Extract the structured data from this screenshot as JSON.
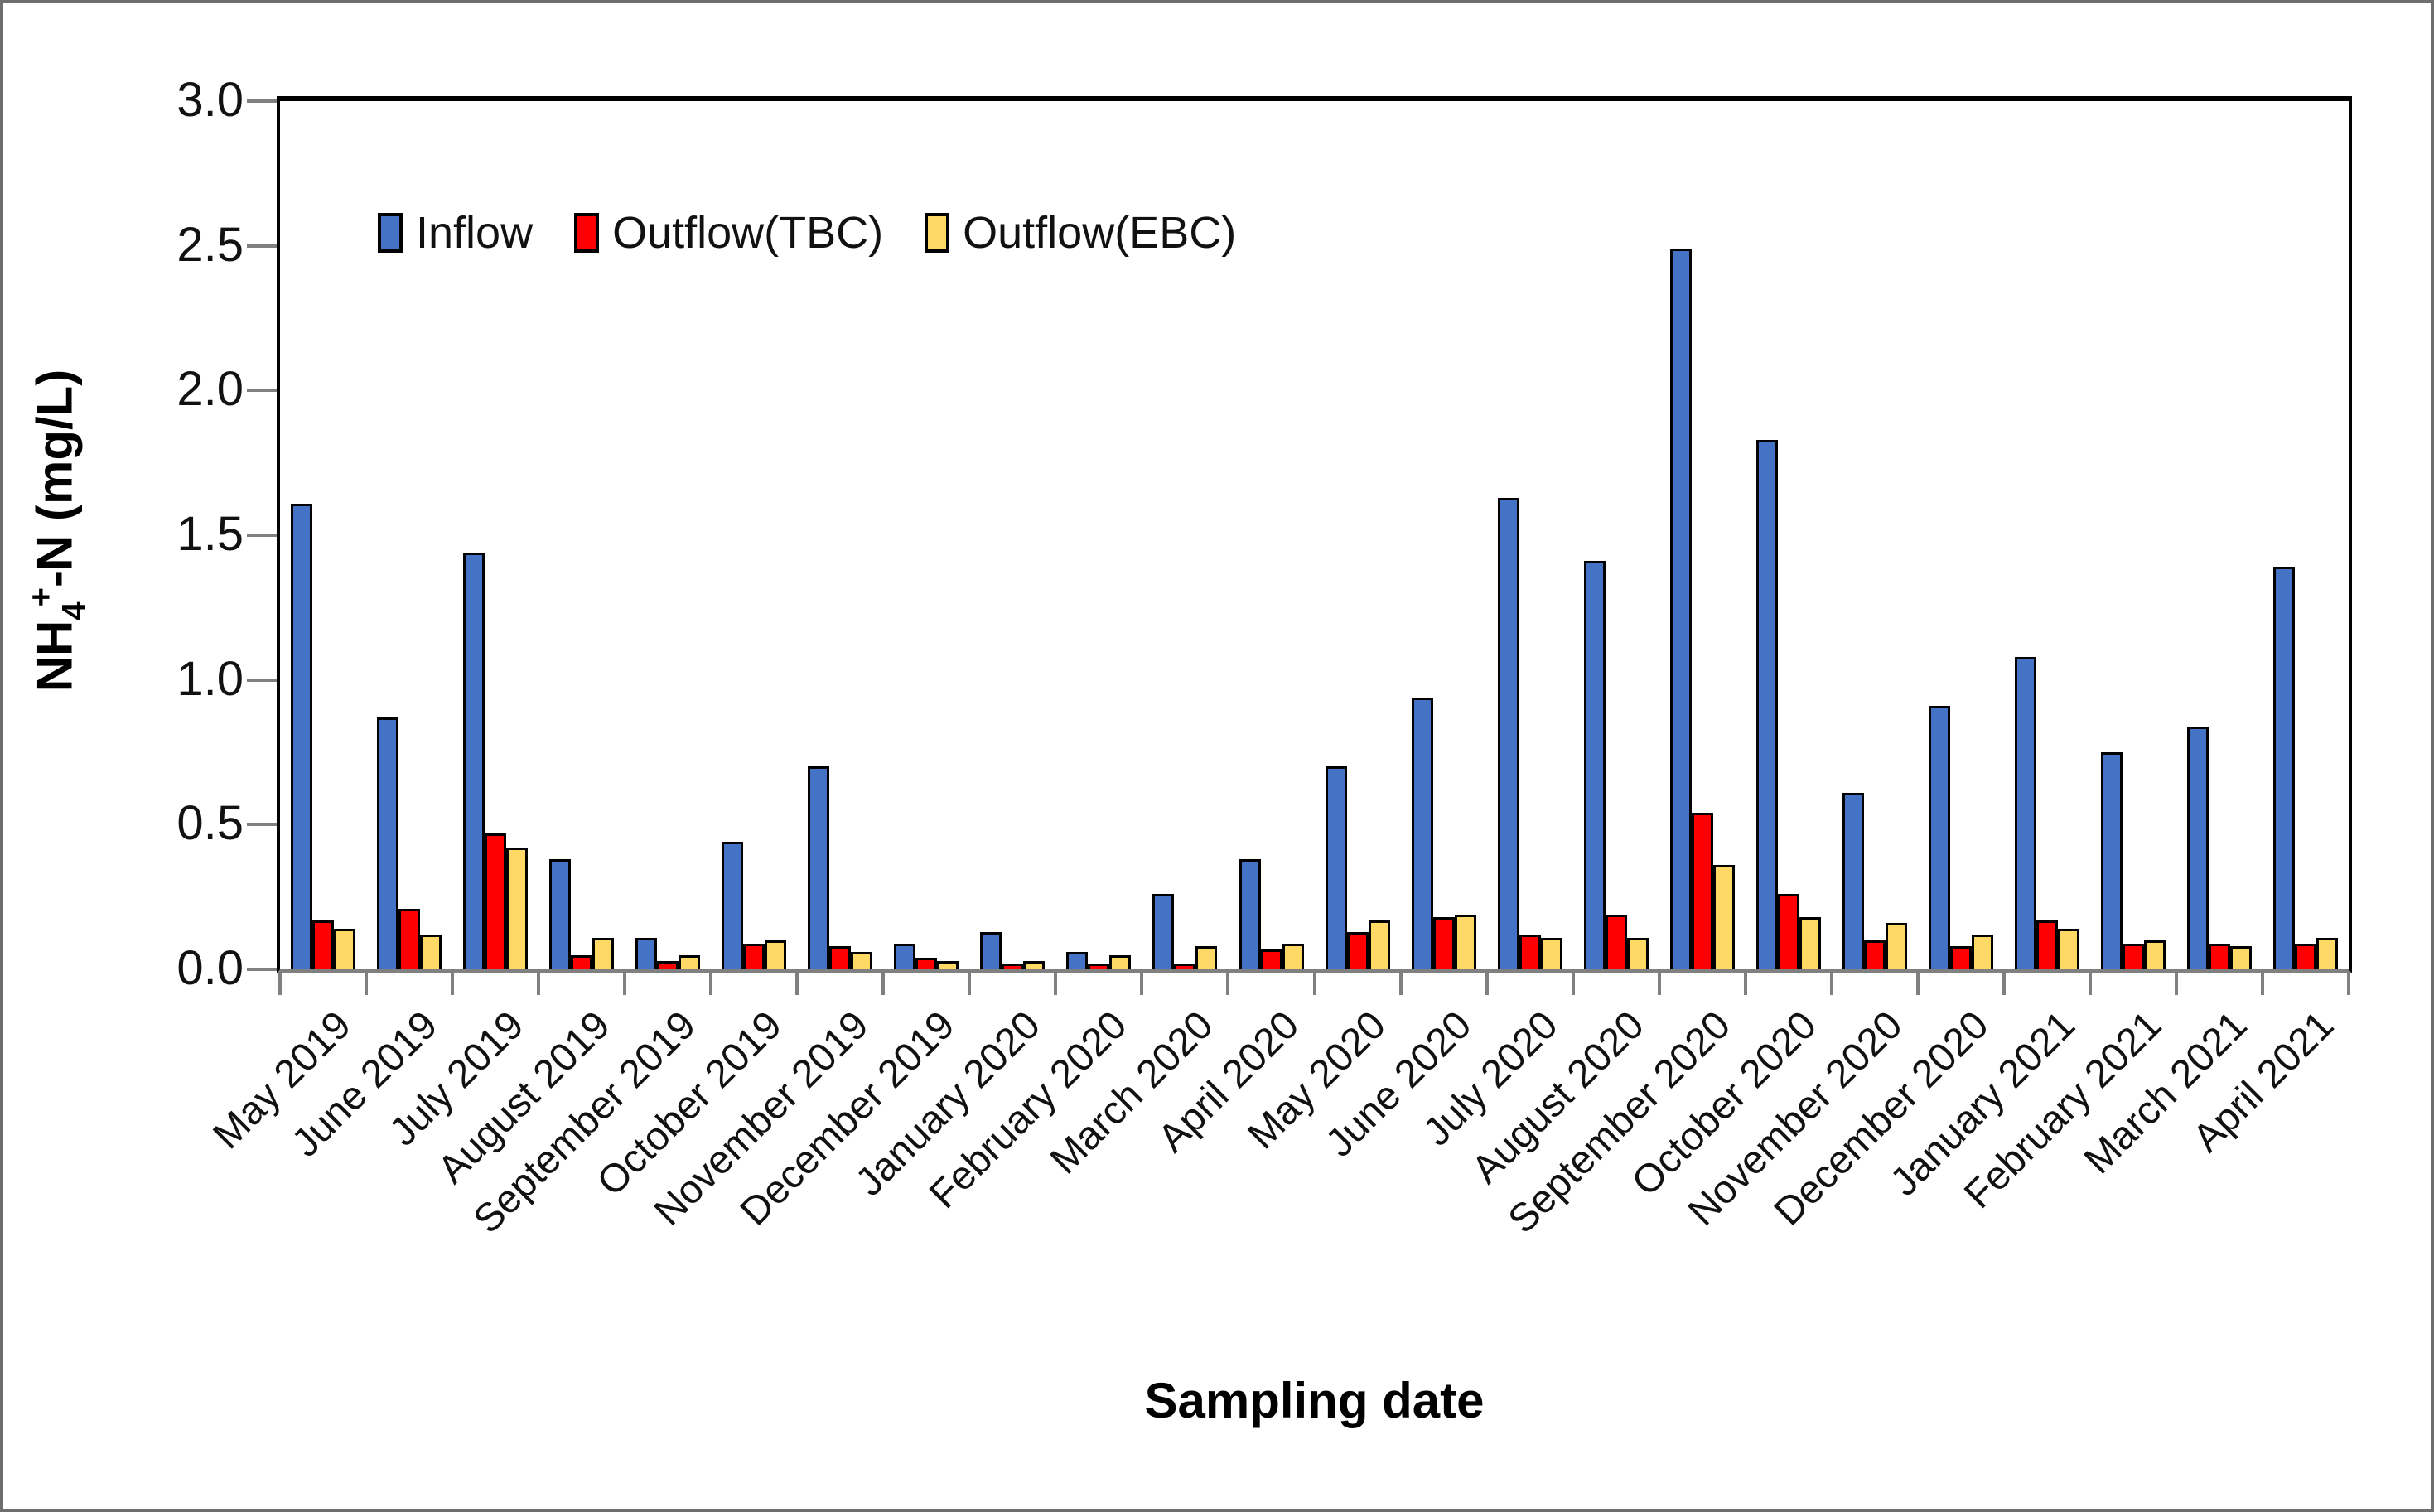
{
  "figure": {
    "x_title": "Sampling date",
    "y_title_prefix": "NH",
    "y_title_sub": "4",
    "y_title_sup": "+",
    "y_title_suffix": "-N (mg/L)"
  },
  "legend": [
    {
      "label": "Inflow",
      "color": "#4472C4"
    },
    {
      "label": "Outflow(TBC)",
      "color": "#FF0000"
    },
    {
      "label": "Outflow(EBC)",
      "color": "#FFD966"
    }
  ],
  "y_axis": {
    "ticks": [
      "3.0",
      "2.5",
      "2.0",
      "1.5",
      "1.0",
      "0.5",
      "0.0"
    ],
    "min": 0,
    "max": 3.0,
    "step": 0.5
  },
  "colors": {
    "axis": "#000000",
    "tick": "#808080",
    "bar_outline": "#000000"
  },
  "chart_data": {
    "type": "bar",
    "title": "",
    "xlabel": "Sampling date",
    "ylabel": "NH4+-N (mg/L)",
    "ylim": [
      0,
      3.0
    ],
    "ytick_step": 0.5,
    "grid": false,
    "legend_position": "top-left-inside",
    "categories": [
      "May 2019",
      "June 2019",
      "July 2019",
      "August 2019",
      "September 2019",
      "October 2019",
      "November 2019",
      "December 2019",
      "January 2020",
      "February 2020",
      "March 2020",
      "April 2020",
      "May 2020",
      "June 2020",
      "July 2020",
      "August 2020",
      "September 2020",
      "October 2020",
      "November 2020",
      "December 2020",
      "January 2021",
      "February 2021",
      "March 2021",
      "April 2021"
    ],
    "series": [
      {
        "name": "Inflow",
        "color": "#4472C4",
        "values": [
          1.61,
          0.87,
          1.44,
          0.38,
          0.11,
          0.44,
          0.7,
          0.09,
          0.13,
          0.06,
          0.26,
          0.38,
          0.7,
          0.94,
          1.63,
          1.41,
          2.49,
          1.83,
          0.61,
          0.91,
          1.08,
          0.75,
          0.84,
          1.39
        ]
      },
      {
        "name": "Outflow(TBC)",
        "color": "#FF0000",
        "values": [
          0.17,
          0.21,
          0.47,
          0.05,
          0.03,
          0.09,
          0.08,
          0.04,
          0.02,
          0.02,
          0.02,
          0.07,
          0.13,
          0.18,
          0.12,
          0.19,
          0.54,
          0.26,
          0.1,
          0.08,
          0.17,
          0.09,
          0.09,
          0.09
        ]
      },
      {
        "name": "Outflow(EBC)",
        "color": "#FFD966",
        "values": [
          0.14,
          0.12,
          0.42,
          0.11,
          0.05,
          0.1,
          0.06,
          0.03,
          0.03,
          0.05,
          0.08,
          0.09,
          0.17,
          0.19,
          0.11,
          0.11,
          0.36,
          0.18,
          0.16,
          0.12,
          0.14,
          0.1,
          0.08,
          0.11
        ]
      }
    ]
  }
}
